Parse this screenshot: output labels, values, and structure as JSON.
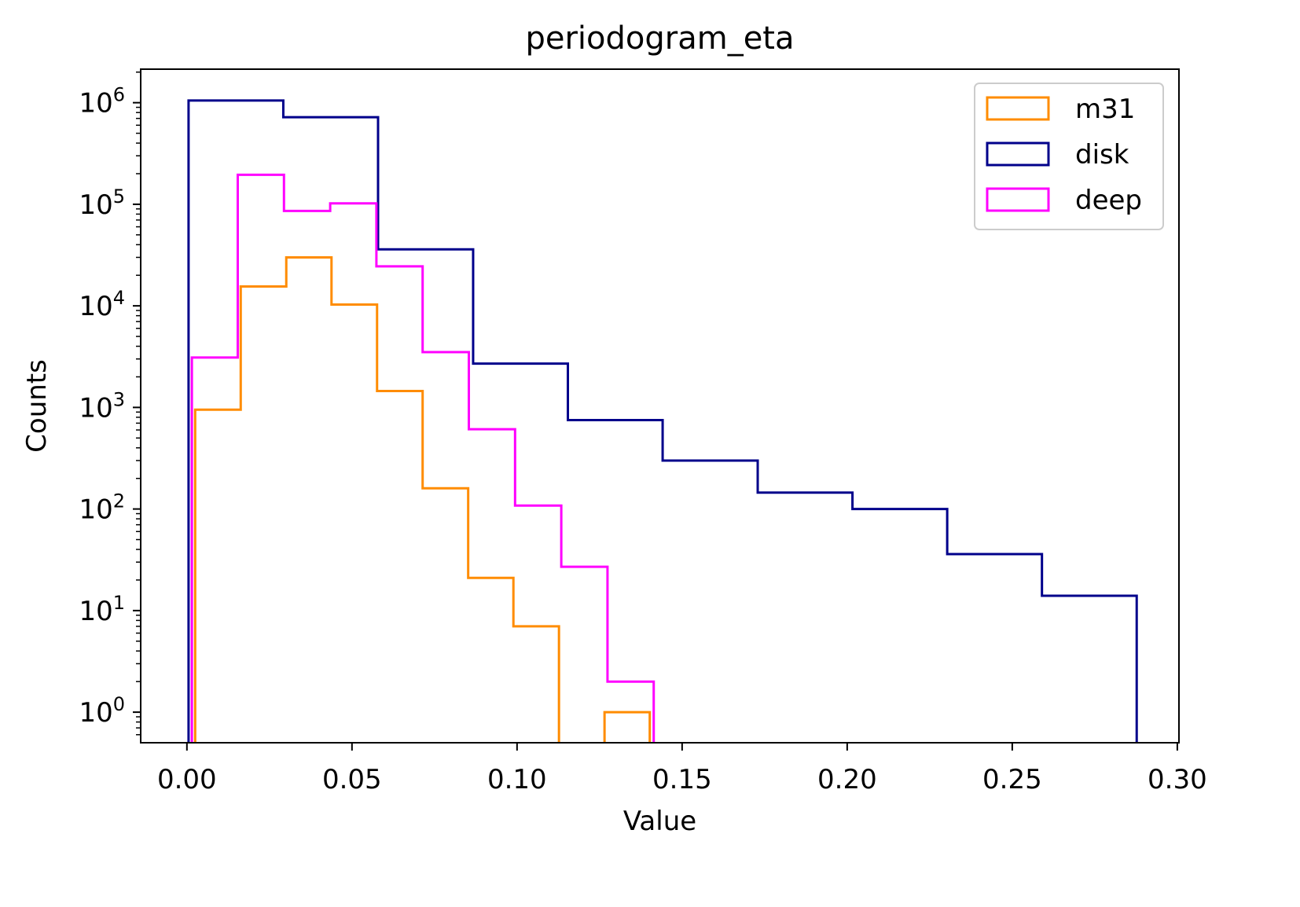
{
  "chart_data": {
    "type": "histogram-step",
    "title": "periodogram_eta",
    "xlabel": "Value",
    "ylabel": "Counts",
    "xlim": [
      -0.014,
      0.3005
    ],
    "ylim_log10": [
      -0.301,
      6.33
    ],
    "yscale": "log",
    "x_ticks": [
      {
        "value": 0.0,
        "label": "0.00"
      },
      {
        "value": 0.05,
        "label": "0.05"
      },
      {
        "value": 0.1,
        "label": "0.10"
      },
      {
        "value": 0.15,
        "label": "0.15"
      },
      {
        "value": 0.2,
        "label": "0.20"
      },
      {
        "value": 0.25,
        "label": "0.25"
      },
      {
        "value": 0.3,
        "label": "0.30"
      }
    ],
    "y_ticks": [
      {
        "exp": 0,
        "base": "10",
        "sup": "0"
      },
      {
        "exp": 1,
        "base": "10",
        "sup": "1"
      },
      {
        "exp": 2,
        "base": "10",
        "sup": "2"
      },
      {
        "exp": 3,
        "base": "10",
        "sup": "3"
      },
      {
        "exp": 4,
        "base": "10",
        "sup": "4"
      },
      {
        "exp": 5,
        "base": "10",
        "sup": "5"
      },
      {
        "exp": 6,
        "base": "10",
        "sup": "6"
      }
    ],
    "legend_position": "top-right",
    "series": [
      {
        "name": "m31",
        "color": "#ff8c00",
        "edges": [
          0.0025,
          0.0163,
          0.0301,
          0.0438,
          0.0576,
          0.0714,
          0.0852,
          0.0989,
          0.1127,
          0.1265,
          0.1402
        ],
        "counts": [
          950,
          15500,
          30000,
          10300,
          1450,
          160,
          21,
          7,
          0,
          1
        ]
      },
      {
        "name": "disk",
        "color": "#00008b",
        "edges": [
          0.0005,
          0.0292,
          0.0579,
          0.0867,
          0.1154,
          0.1441,
          0.1729,
          0.2016,
          0.2303,
          0.259,
          0.2877
        ],
        "counts": [
          1050000,
          720000,
          36000,
          2700,
          750,
          300,
          145,
          100,
          36,
          14
        ]
      },
      {
        "name": "deep",
        "color": "#ff00ff",
        "edges": [
          0.0015,
          0.0154,
          0.0294,
          0.0434,
          0.0574,
          0.0714,
          0.0854,
          0.0994,
          0.1134,
          0.1274,
          0.1414
        ],
        "counts": [
          3100,
          195000,
          86000,
          102000,
          24500,
          3500,
          610,
          108,
          27,
          2
        ]
      }
    ]
  }
}
